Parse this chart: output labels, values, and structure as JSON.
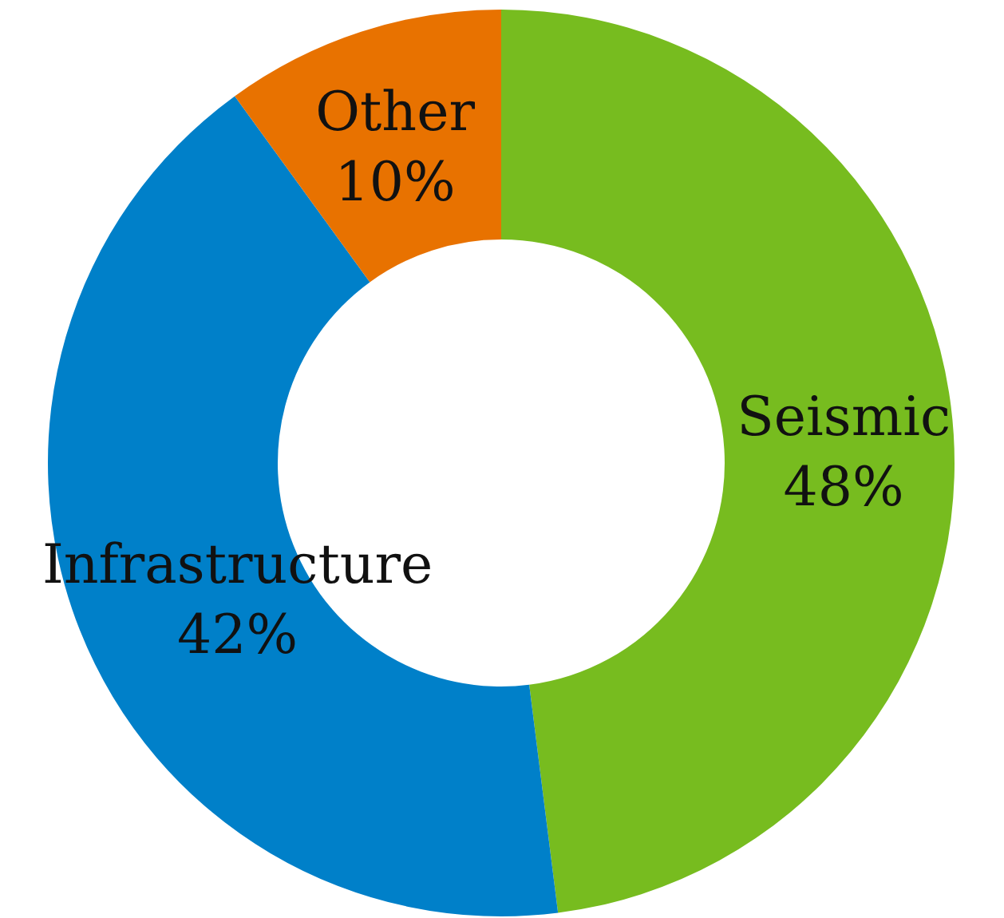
{
  "chart_data": {
    "type": "donut",
    "categories": [
      "Seismic",
      "Infrastructure",
      "Other"
    ],
    "values": [
      48,
      42,
      10
    ],
    "colors": [
      "#77bc1f",
      "#0080c9",
      "#e87200"
    ],
    "value_labels": [
      "48%",
      "42%",
      "10%"
    ]
  }
}
